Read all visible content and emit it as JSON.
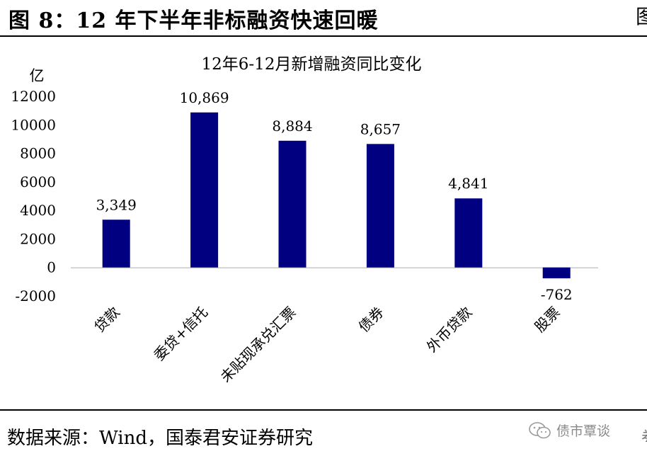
{
  "figure": {
    "title": "图  8：12 年下半年非标融资快速回暖",
    "source": "数据来源：Wind，国泰君安证券研究",
    "watermark": "债市覃谈"
  },
  "chart_data": {
    "type": "bar",
    "title": "12年6-12月新增融资同比变化",
    "unit_label": "亿",
    "categories": [
      "贷款",
      "委贷+信托",
      "未贴现承兑汇票",
      "债券",
      "外币贷款",
      "股票"
    ],
    "values": [
      3349,
      10869,
      8884,
      8657,
      4841,
      -762
    ],
    "data_labels": [
      "3,349",
      "10,869",
      "8,884",
      "8,657",
      "4,841",
      "-762"
    ],
    "yticks": [
      "-2000",
      "0",
      "2000",
      "4000",
      "6000",
      "8000",
      "10000",
      "12000"
    ],
    "ylim": [
      -2000,
      12000
    ],
    "bar_color": "#000080",
    "grid": false,
    "legend": "none"
  }
}
